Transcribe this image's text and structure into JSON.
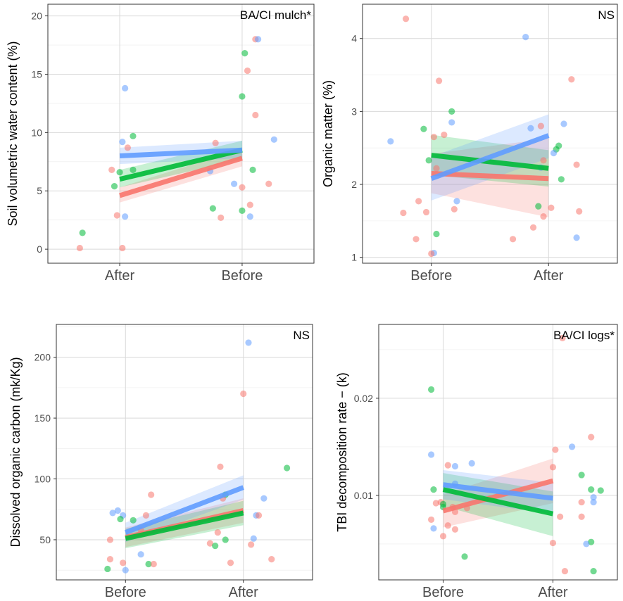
{
  "colors": {
    "red": "#f8766d",
    "green": "#00ba38",
    "blue": "#619cff"
  },
  "chart_data": [
    {
      "type": "scatter",
      "ylabel": "Soil volumetric water content (%)",
      "annotation": "BA/CI mulch*",
      "categories": [
        "After",
        "Before"
      ],
      "ylim": [
        -1.2,
        21
      ],
      "yticks": [
        0,
        5,
        10,
        15,
        20
      ],
      "grid": true,
      "points": [
        {
          "c": 0,
          "x": -0.14,
          "y": 1.4,
          "s": "green"
        },
        {
          "c": 0,
          "x": -0.15,
          "y": 0.1,
          "s": "red"
        },
        {
          "c": 0,
          "x": 0.01,
          "y": 0.1,
          "s": "red"
        },
        {
          "c": 0,
          "x": -0.01,
          "y": 2.9,
          "s": "red"
        },
        {
          "c": 0,
          "x": 0.02,
          "y": 2.8,
          "s": "blue"
        },
        {
          "c": 0,
          "x": -0.02,
          "y": 5.4,
          "s": "green"
        },
        {
          "c": 0,
          "x": -0.03,
          "y": 6.8,
          "s": "red"
        },
        {
          "c": 0,
          "x": 0.0,
          "y": 6.6,
          "s": "green"
        },
        {
          "c": 0,
          "x": 0.05,
          "y": 6.8,
          "s": "green"
        },
        {
          "c": 0,
          "x": 0.03,
          "y": 8.7,
          "s": "red"
        },
        {
          "c": 0,
          "x": 0.01,
          "y": 9.2,
          "s": "blue"
        },
        {
          "c": 0,
          "x": 0.05,
          "y": 9.7,
          "s": "green"
        },
        {
          "c": 0,
          "x": 0.02,
          "y": 13.8,
          "s": "blue"
        },
        {
          "c": 1,
          "x": -0.11,
          "y": 3.5,
          "s": "green"
        },
        {
          "c": 1,
          "x": -0.08,
          "y": 2.7,
          "s": "red"
        },
        {
          "c": 1,
          "x": 0.0,
          "y": 3.3,
          "s": "green"
        },
        {
          "c": 1,
          "x": 0.03,
          "y": 3.8,
          "s": "red"
        },
        {
          "c": 1,
          "x": 0.03,
          "y": 2.8,
          "s": "blue"
        },
        {
          "c": 1,
          "x": -0.12,
          "y": 6.7,
          "s": "blue"
        },
        {
          "c": 1,
          "x": -0.03,
          "y": 5.6,
          "s": "blue"
        },
        {
          "c": 1,
          "x": 0.0,
          "y": 5.3,
          "s": "red"
        },
        {
          "c": 1,
          "x": 0.04,
          "y": 6.8,
          "s": "green"
        },
        {
          "c": 1,
          "x": 0.1,
          "y": 5.6,
          "s": "red"
        },
        {
          "c": 1,
          "x": -0.1,
          "y": 9.1,
          "s": "red"
        },
        {
          "c": 1,
          "x": 0.12,
          "y": 9.4,
          "s": "blue"
        },
        {
          "c": 1,
          "x": 0.05,
          "y": 11.5,
          "s": "red"
        },
        {
          "c": 1,
          "x": 0.0,
          "y": 13.1,
          "s": "green"
        },
        {
          "c": 1,
          "x": 0.02,
          "y": 15.3,
          "s": "red"
        },
        {
          "c": 1,
          "x": 0.01,
          "y": 16.8,
          "s": "green"
        },
        {
          "c": 1,
          "x": 0.05,
          "y": 18.0,
          "s": "red"
        },
        {
          "c": 1,
          "x": 0.06,
          "y": 18.0,
          "s": "blue"
        }
      ],
      "fits": [
        {
          "s": "red",
          "y0": 4.6,
          "y1": 7.8,
          "band": [
            [
              4.0,
              5.3
            ],
            [
              7.1,
              8.6
            ]
          ]
        },
        {
          "s": "green",
          "y0": 6.0,
          "y1": 8.5,
          "band": [
            [
              5.3,
              6.8
            ],
            [
              7.7,
              9.3
            ]
          ]
        },
        {
          "s": "blue",
          "y0": 8.0,
          "y1": 8.5,
          "band": [
            [
              7.3,
              8.7
            ],
            [
              7.8,
              9.3
            ]
          ]
        }
      ]
    },
    {
      "type": "scatter",
      "ylabel": "Organic matter (%)",
      "annotation": "NS",
      "categories": [
        "Before",
        "After"
      ],
      "ylim": [
        0.92,
        4.47
      ],
      "yticks": [
        1,
        2,
        3,
        4
      ],
      "grid": true,
      "points": [
        {
          "c": 0,
          "x": -0.1,
          "y": 4.27,
          "s": "red"
        },
        {
          "c": 0,
          "x": 0.03,
          "y": 3.42,
          "s": "red"
        },
        {
          "c": 0,
          "x": 0.08,
          "y": 3.0,
          "s": "green"
        },
        {
          "c": 0,
          "x": 0.08,
          "y": 2.85,
          "s": "blue"
        },
        {
          "c": 0,
          "x": -0.03,
          "y": 2.76,
          "s": "green"
        },
        {
          "c": 0,
          "x": 0.05,
          "y": 2.68,
          "s": "red"
        },
        {
          "c": 0,
          "x": 0.01,
          "y": 2.65,
          "s": "red"
        },
        {
          "c": 0,
          "x": -0.16,
          "y": 2.59,
          "s": "blue"
        },
        {
          "c": 0,
          "x": -0.01,
          "y": 2.33,
          "s": "green"
        },
        {
          "c": 0,
          "x": 0.02,
          "y": 2.22,
          "s": "red"
        },
        {
          "c": 0,
          "x": -0.05,
          "y": 1.77,
          "s": "red"
        },
        {
          "c": 0,
          "x": 0.1,
          "y": 1.77,
          "s": "blue"
        },
        {
          "c": 0,
          "x": -0.02,
          "y": 1.62,
          "s": "red"
        },
        {
          "c": 0,
          "x": -0.11,
          "y": 1.61,
          "s": "red"
        },
        {
          "c": 0,
          "x": 0.09,
          "y": 1.66,
          "s": "red"
        },
        {
          "c": 0,
          "x": 0.02,
          "y": 1.32,
          "s": "green"
        },
        {
          "c": 0,
          "x": -0.06,
          "y": 1.25,
          "s": "red"
        },
        {
          "c": 0,
          "x": 0.01,
          "y": 1.06,
          "s": "blue"
        },
        {
          "c": 0,
          "x": 0.0,
          "y": 1.05,
          "s": "red"
        },
        {
          "c": 1,
          "x": -0.09,
          "y": 4.02,
          "s": "blue"
        },
        {
          "c": 1,
          "x": 0.09,
          "y": 3.44,
          "s": "red"
        },
        {
          "c": 1,
          "x": 0.06,
          "y": 2.83,
          "s": "blue"
        },
        {
          "c": 1,
          "x": -0.03,
          "y": 2.8,
          "s": "red"
        },
        {
          "c": 1,
          "x": -0.07,
          "y": 2.77,
          "s": "blue"
        },
        {
          "c": 1,
          "x": 0.04,
          "y": 2.53,
          "s": "green"
        },
        {
          "c": 1,
          "x": 0.03,
          "y": 2.48,
          "s": "green"
        },
        {
          "c": 1,
          "x": 0.02,
          "y": 2.43,
          "s": "blue"
        },
        {
          "c": 1,
          "x": -0.02,
          "y": 2.33,
          "s": "red"
        },
        {
          "c": 1,
          "x": 0.11,
          "y": 2.27,
          "s": "red"
        },
        {
          "c": 1,
          "x": -0.03,
          "y": 2.23,
          "s": "blue"
        },
        {
          "c": 1,
          "x": 0.05,
          "y": 2.07,
          "s": "green"
        },
        {
          "c": 1,
          "x": -0.04,
          "y": 1.7,
          "s": "green"
        },
        {
          "c": 1,
          "x": 0.01,
          "y": 1.68,
          "s": "red"
        },
        {
          "c": 1,
          "x": 0.12,
          "y": 1.63,
          "s": "red"
        },
        {
          "c": 1,
          "x": -0.02,
          "y": 1.56,
          "s": "red"
        },
        {
          "c": 1,
          "x": -0.06,
          "y": 1.41,
          "s": "red"
        },
        {
          "c": 1,
          "x": -0.14,
          "y": 1.25,
          "s": "red"
        },
        {
          "c": 1,
          "x": 0.11,
          "y": 1.27,
          "s": "blue"
        }
      ],
      "fits": [
        {
          "s": "red",
          "y0": 2.15,
          "y1": 2.08,
          "band": [
            [
              1.88,
              2.42
            ],
            [
              1.55,
              2.63
            ]
          ]
        },
        {
          "s": "green",
          "y0": 2.4,
          "y1": 2.22,
          "band": [
            [
              2.13,
              2.68
            ],
            [
              1.97,
              2.47
            ]
          ]
        },
        {
          "s": "blue",
          "y0": 2.08,
          "y1": 2.67,
          "band": [
            [
              1.78,
              2.38
            ],
            [
              2.36,
              2.96
            ]
          ]
        }
      ]
    },
    {
      "type": "scatter",
      "ylabel": "Dissolved organic carbon (mk/Kg)",
      "annotation": "NS",
      "categories": [
        "Before",
        "After"
      ],
      "ylim": [
        17,
        227
      ],
      "yticks": [
        50,
        100,
        150,
        200
      ],
      "grid": true,
      "points": [
        {
          "c": 0,
          "x": 0.1,
          "y": 87,
          "s": "red"
        },
        {
          "c": 0,
          "x": -0.03,
          "y": 74,
          "s": "blue"
        },
        {
          "c": 0,
          "x": -0.05,
          "y": 72,
          "s": "blue"
        },
        {
          "c": 0,
          "x": 0.08,
          "y": 70,
          "s": "red"
        },
        {
          "c": 0,
          "x": -0.01,
          "y": 70,
          "s": "blue"
        },
        {
          "c": 0,
          "x": -0.02,
          "y": 67,
          "s": "green"
        },
        {
          "c": 0,
          "x": 0.03,
          "y": 66,
          "s": "green"
        },
        {
          "c": 0,
          "x": 0.06,
          "y": 58,
          "s": "red"
        },
        {
          "c": 0,
          "x": -0.06,
          "y": 50,
          "s": "red"
        },
        {
          "c": 0,
          "x": 0.06,
          "y": 38,
          "s": "blue"
        },
        {
          "c": 0,
          "x": -0.06,
          "y": 34,
          "s": "red"
        },
        {
          "c": 0,
          "x": -0.01,
          "y": 31,
          "s": "red"
        },
        {
          "c": 0,
          "x": 0.09,
          "y": 30,
          "s": "green"
        },
        {
          "c": 0,
          "x": 0.11,
          "y": 30,
          "s": "red"
        },
        {
          "c": 0,
          "x": -0.07,
          "y": 26,
          "s": "green"
        },
        {
          "c": 0,
          "x": 0.0,
          "y": 25,
          "s": "blue"
        },
        {
          "c": 1,
          "x": 0.02,
          "y": 212,
          "s": "blue"
        },
        {
          "c": 1,
          "x": 0.0,
          "y": 170,
          "s": "red"
        },
        {
          "c": 1,
          "x": 0.17,
          "y": 109,
          "s": "green"
        },
        {
          "c": 1,
          "x": -0.09,
          "y": 110,
          "s": "red"
        },
        {
          "c": 1,
          "x": -0.07,
          "y": 87,
          "s": "green"
        },
        {
          "c": 1,
          "x": 0.08,
          "y": 84,
          "s": "blue"
        },
        {
          "c": 1,
          "x": -0.08,
          "y": 84,
          "s": "red"
        },
        {
          "c": 1,
          "x": 0.05,
          "y": 70,
          "s": "blue"
        },
        {
          "c": 1,
          "x": 0.06,
          "y": 70,
          "s": "red"
        },
        {
          "c": 1,
          "x": -0.1,
          "y": 56,
          "s": "red"
        },
        {
          "c": 1,
          "x": -0.07,
          "y": 50,
          "s": "green"
        },
        {
          "c": 1,
          "x": 0.04,
          "y": 51,
          "s": "blue"
        },
        {
          "c": 1,
          "x": -0.13,
          "y": 47,
          "s": "red"
        },
        {
          "c": 1,
          "x": -0.11,
          "y": 45,
          "s": "green"
        },
        {
          "c": 1,
          "x": 0.03,
          "y": 46,
          "s": "red"
        },
        {
          "c": 1,
          "x": -0.05,
          "y": 31,
          "s": "red"
        },
        {
          "c": 1,
          "x": 0.11,
          "y": 34,
          "s": "red"
        }
      ],
      "fits": [
        {
          "s": "red",
          "y0": 52,
          "y1": 74,
          "band": [
            [
              44,
              60
            ],
            [
              64,
              84
            ]
          ]
        },
        {
          "s": "green",
          "y0": 51,
          "y1": 72,
          "band": [
            [
              43,
              59
            ],
            [
              62,
              82
            ]
          ]
        },
        {
          "s": "blue",
          "y0": 56,
          "y1": 93,
          "band": [
            [
              48,
              64
            ],
            [
              83,
              103
            ]
          ]
        }
      ]
    },
    {
      "type": "scatter",
      "ylabel": "TBI decomposition rate − (k)",
      "annotation": "BA/CI logs*",
      "categories": [
        "Before",
        "After"
      ],
      "ylim": [
        0.0013,
        0.0276
      ],
      "yticks": [
        0.01,
        0.02
      ],
      "ytick_labels": [
        "0.01",
        "0.02"
      ],
      "grid": true,
      "points": [
        {
          "c": 0,
          "x": -0.05,
          "y": 0.0209,
          "s": "green"
        },
        {
          "c": 0,
          "x": -0.05,
          "y": 0.0142,
          "s": "blue"
        },
        {
          "c": 0,
          "x": 0.12,
          "y": 0.0133,
          "s": "blue"
        },
        {
          "c": 0,
          "x": 0.02,
          "y": 0.0131,
          "s": "red"
        },
        {
          "c": 0,
          "x": 0.05,
          "y": 0.013,
          "s": "blue"
        },
        {
          "c": 0,
          "x": 0.05,
          "y": 0.0112,
          "s": "blue"
        },
        {
          "c": 0,
          "x": -0.04,
          "y": 0.0106,
          "s": "green"
        },
        {
          "c": 0,
          "x": -0.03,
          "y": 0.0092,
          "s": "red"
        },
        {
          "c": 0,
          "x": -0.01,
          "y": 0.0093,
          "s": "red"
        },
        {
          "c": 0,
          "x": 0.0,
          "y": 0.0091,
          "s": "green"
        },
        {
          "c": 0,
          "x": 0.0,
          "y": 0.0088,
          "s": "green"
        },
        {
          "c": 0,
          "x": 0.04,
          "y": 0.0088,
          "s": "red"
        },
        {
          "c": 0,
          "x": 0.1,
          "y": 0.0087,
          "s": "red"
        },
        {
          "c": 0,
          "x": 0.05,
          "y": 0.0083,
          "s": "red"
        },
        {
          "c": 0,
          "x": -0.05,
          "y": 0.0075,
          "s": "red"
        },
        {
          "c": 0,
          "x": 0.02,
          "y": 0.0069,
          "s": "red"
        },
        {
          "c": 0,
          "x": -0.04,
          "y": 0.0066,
          "s": "blue"
        },
        {
          "c": 0,
          "x": 0.05,
          "y": 0.0065,
          "s": "red"
        },
        {
          "c": 0,
          "x": 0.0,
          "y": 0.0058,
          "s": "red"
        },
        {
          "c": 0,
          "x": 0.09,
          "y": 0.0037,
          "s": "green"
        },
        {
          "c": 1,
          "x": 0.04,
          "y": 0.0262,
          "s": "red"
        },
        {
          "c": 1,
          "x": 0.16,
          "y": 0.016,
          "s": "red"
        },
        {
          "c": 1,
          "x": 0.08,
          "y": 0.015,
          "s": "blue"
        },
        {
          "c": 1,
          "x": 0.01,
          "y": 0.0147,
          "s": "red"
        },
        {
          "c": 1,
          "x": 0.0,
          "y": 0.0129,
          "s": "red"
        },
        {
          "c": 1,
          "x": 0.12,
          "y": 0.0121,
          "s": "green"
        },
        {
          "c": 1,
          "x": 0.16,
          "y": 0.0106,
          "s": "green"
        },
        {
          "c": 1,
          "x": 0.2,
          "y": 0.0105,
          "s": "green"
        },
        {
          "c": 1,
          "x": 0.17,
          "y": 0.0098,
          "s": "blue"
        },
        {
          "c": 1,
          "x": 0.17,
          "y": 0.0093,
          "s": "blue"
        },
        {
          "c": 1,
          "x": 0.12,
          "y": 0.0093,
          "s": "red"
        },
        {
          "c": 1,
          "x": 0.03,
          "y": 0.0078,
          "s": "red"
        },
        {
          "c": 1,
          "x": 0.12,
          "y": 0.0078,
          "s": "red"
        },
        {
          "c": 1,
          "x": 0.0,
          "y": 0.0051,
          "s": "red"
        },
        {
          "c": 1,
          "x": 0.16,
          "y": 0.0052,
          "s": "green"
        },
        {
          "c": 1,
          "x": 0.14,
          "y": 0.005,
          "s": "blue"
        },
        {
          "c": 1,
          "x": 0.05,
          "y": 0.0022,
          "s": "red"
        },
        {
          "c": 1,
          "x": 0.17,
          "y": 0.0022,
          "s": "green"
        }
      ],
      "fits": [
        {
          "s": "red",
          "y0": 0.0084,
          "y1": 0.0115,
          "band": [
            [
              0.0067,
              0.0101
            ],
            [
              0.0092,
              0.0138
            ]
          ]
        },
        {
          "s": "green",
          "y0": 0.0106,
          "y1": 0.0081,
          "band": [
            [
              0.0089,
              0.0123
            ],
            [
              0.0058,
              0.0104
            ]
          ]
        },
        {
          "s": "blue",
          "y0": 0.0111,
          "y1": 0.0097,
          "band": [
            [
              0.0096,
              0.0126
            ],
            [
              0.0081,
              0.0113
            ]
          ]
        }
      ]
    }
  ]
}
